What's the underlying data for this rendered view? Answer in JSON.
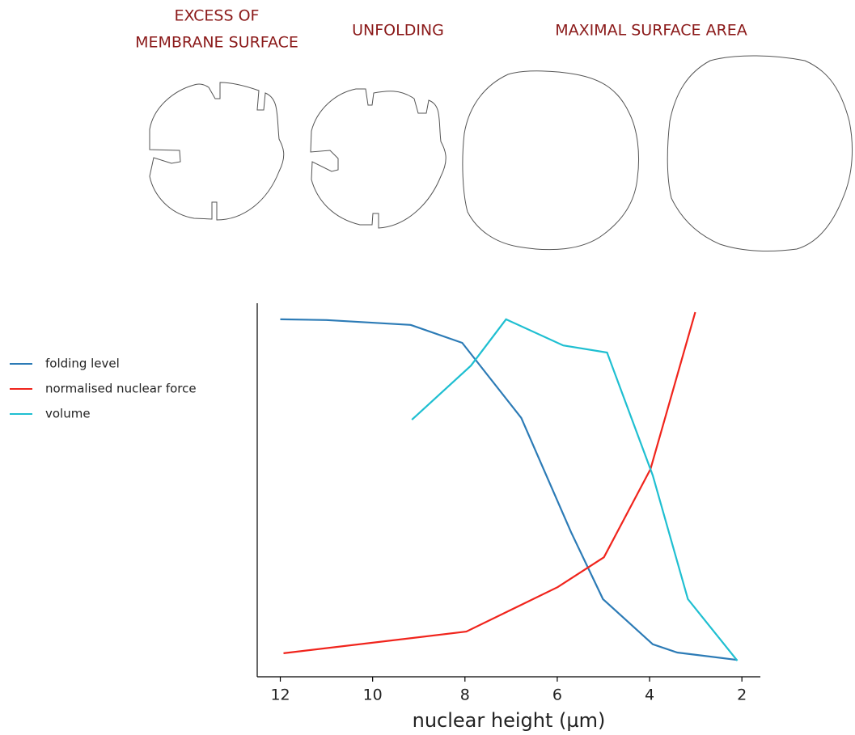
{
  "chart_data": {
    "type": "line",
    "annotations": [
      [
        "EXCESS OF",
        "MEMBRANE SURFACE"
      ],
      [
        "UNFOLDING"
      ],
      [
        "MAXIMAL SURFACE AREA"
      ]
    ],
    "x_label": "nuclear height (µm)",
    "xlim": [
      12.5,
      1.6
    ],
    "xticks": [
      12,
      10,
      8,
      6,
      4,
      2
    ],
    "ylim": [
      0,
      1
    ],
    "legend": "left",
    "series": [
      {
        "name": "folding level",
        "color": "#2c7bb6",
        "x": [
          12,
          11,
          9.18,
          8.06,
          6.78,
          5.7,
          5.01,
          3.93,
          3.4,
          2.1
        ],
        "values": [
          0.957,
          0.955,
          0.942,
          0.894,
          0.693,
          0.387,
          0.208,
          0.087,
          0.065,
          0.045
        ]
      },
      {
        "name": "normalised nuclear force",
        "color": "#f0241c",
        "x": [
          11.93,
          7.97,
          5.99,
          4.99,
          3.98,
          3.01
        ],
        "values": [
          0.063,
          0.121,
          0.24,
          0.32,
          0.556,
          0.976
        ]
      },
      {
        "name": "volume",
        "color": "#1fbfd1",
        "x": [
          9.15,
          7.87,
          7.11,
          5.87,
          4.92,
          3.93,
          3.17,
          2.1
        ],
        "values": [
          0.688,
          0.833,
          0.957,
          0.887,
          0.868,
          0.539,
          0.208,
          0.043
        ]
      }
    ]
  }
}
